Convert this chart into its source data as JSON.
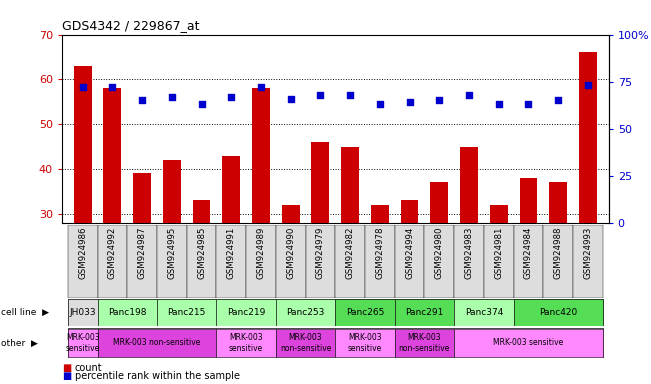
{
  "title": "GDS4342 / 229867_at",
  "samples": [
    "GSM924986",
    "GSM924992",
    "GSM924987",
    "GSM924995",
    "GSM924985",
    "GSM924991",
    "GSM924989",
    "GSM924990",
    "GSM924979",
    "GSM924982",
    "GSM924978",
    "GSM924994",
    "GSM924980",
    "GSM924983",
    "GSM924981",
    "GSM924984",
    "GSM924988",
    "GSM924993"
  ],
  "count_values": [
    63,
    58,
    39,
    42,
    33,
    43,
    58,
    32,
    46,
    45,
    32,
    33,
    37,
    45,
    32,
    38,
    37,
    66
  ],
  "percentile_values": [
    72,
    72,
    65,
    67,
    63,
    67,
    72,
    66,
    68,
    68,
    63,
    64,
    65,
    68,
    63,
    63,
    65,
    73
  ],
  "ylim_left": [
    28,
    70
  ],
  "ylim_right": [
    0,
    100
  ],
  "yticks_left": [
    30,
    40,
    50,
    60,
    70
  ],
  "yticks_right": [
    0,
    25,
    50,
    75,
    100
  ],
  "bar_color": "#cc0000",
  "dot_color": "#0000cc",
  "cell_lines": [
    {
      "name": "JH033",
      "start": 0,
      "end": 1,
      "color": "#dddddd"
    },
    {
      "name": "Panc198",
      "start": 1,
      "end": 3,
      "color": "#aaffaa"
    },
    {
      "name": "Panc215",
      "start": 3,
      "end": 5,
      "color": "#aaffaa"
    },
    {
      "name": "Panc219",
      "start": 5,
      "end": 7,
      "color": "#aaffaa"
    },
    {
      "name": "Panc253",
      "start": 7,
      "end": 9,
      "color": "#aaffaa"
    },
    {
      "name": "Panc265",
      "start": 9,
      "end": 11,
      "color": "#55dd55"
    },
    {
      "name": "Panc291",
      "start": 11,
      "end": 13,
      "color": "#55dd55"
    },
    {
      "name": "Panc374",
      "start": 13,
      "end": 15,
      "color": "#aaffaa"
    },
    {
      "name": "Panc420",
      "start": 15,
      "end": 18,
      "color": "#55dd55"
    }
  ],
  "other_groups": [
    {
      "label": "MRK-003\nsensitive",
      "start": 0,
      "end": 1,
      "color": "#ff88ff"
    },
    {
      "label": "MRK-003 non-sensitive",
      "start": 1,
      "end": 5,
      "color": "#dd44dd"
    },
    {
      "label": "MRK-003\nsensitive",
      "start": 5,
      "end": 7,
      "color": "#ff88ff"
    },
    {
      "label": "MRK-003\nnon-sensitive",
      "start": 7,
      "end": 9,
      "color": "#dd44dd"
    },
    {
      "label": "MRK-003\nsensitive",
      "start": 9,
      "end": 11,
      "color": "#ff88ff"
    },
    {
      "label": "MRK-003\nnon-sensitive",
      "start": 11,
      "end": 13,
      "color": "#dd44dd"
    },
    {
      "label": "MRK-003 sensitive",
      "start": 13,
      "end": 18,
      "color": "#ff88ff"
    }
  ],
  "legend_count_color": "#cc0000",
  "legend_dot_color": "#0000cc",
  "background_color": "#ffffff"
}
